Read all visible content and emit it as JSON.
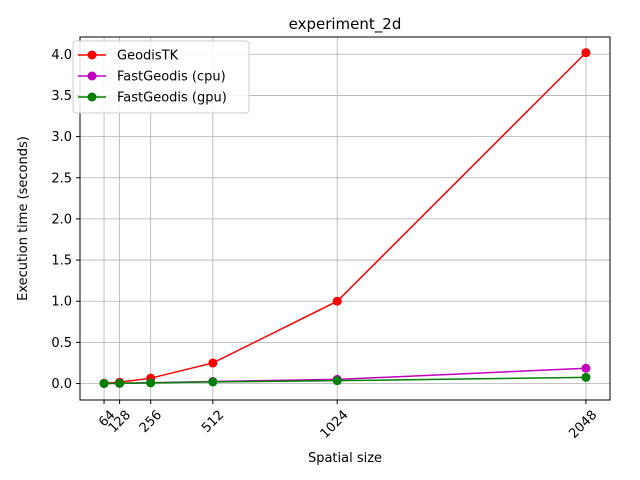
{
  "chart_data": {
    "type": "line",
    "title": "experiment_2d",
    "xlabel": "Spatial size",
    "ylabel": "Execution time (seconds)",
    "x": [
      64,
      128,
      256,
      512,
      1024,
      2048
    ],
    "x_tick_labels": [
      "64",
      "128",
      "256",
      "512",
      "1024",
      "2048"
    ],
    "y_ticks": [
      0.0,
      0.5,
      1.0,
      1.5,
      2.0,
      2.5,
      3.0,
      3.5,
      4.0
    ],
    "y_tick_labels": [
      "0.0",
      "0.5",
      "1.0",
      "1.5",
      "2.0",
      "2.5",
      "3.0",
      "3.5",
      "4.0"
    ],
    "xlim": [
      -35,
      2147
    ],
    "ylim": [
      -0.2,
      4.21
    ],
    "grid": true,
    "legend_position": "upper-left",
    "series": [
      {
        "name": "GeodisTK",
        "color": "#ff0000",
        "values": [
          0.004,
          0.016,
          0.065,
          0.25,
          1.0,
          4.02
        ]
      },
      {
        "name": "FastGeodis (cpu)",
        "color": "#bf00bf",
        "values": [
          0.001,
          0.003,
          0.01,
          0.025,
          0.05,
          0.185
        ]
      },
      {
        "name": "FastGeodis (gpu)",
        "color": "#008000",
        "values": [
          0.001,
          0.002,
          0.008,
          0.02,
          0.035,
          0.075
        ]
      }
    ]
  }
}
